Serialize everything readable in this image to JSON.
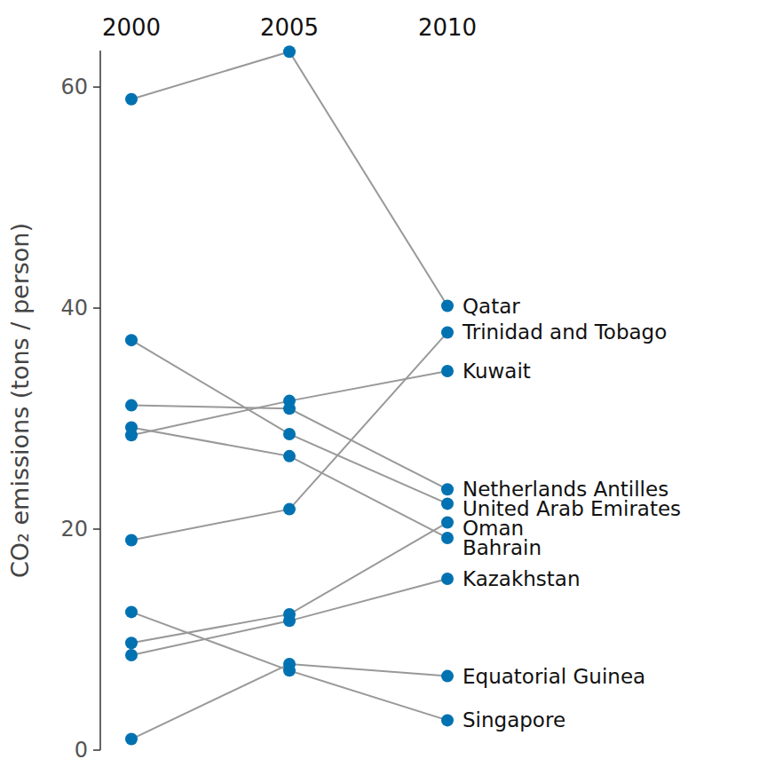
{
  "chart_data": {
    "type": "line",
    "marker": "circle",
    "color": "#0072b2",
    "y_label": "CO₂ emissions (tons / person)",
    "x": [
      2000,
      2005,
      2010
    ],
    "xlim": [
      2000,
      2010
    ],
    "ylim": [
      0,
      63.3
    ],
    "yticks": [
      0,
      20,
      40,
      60
    ],
    "series": [
      {
        "name": "Qatar",
        "values": [
          58.9,
          63.2,
          40.2
        ]
      },
      {
        "name": "Trinidad and Tobago",
        "values": [
          19.0,
          21.8,
          37.8
        ]
      },
      {
        "name": "Kuwait",
        "values": [
          28.5,
          31.6,
          34.3
        ]
      },
      {
        "name": "Netherlands Antilles",
        "values": [
          31.2,
          30.9,
          23.6
        ]
      },
      {
        "name": "United Arab Emirates",
        "values": [
          37.1,
          28.6,
          22.3
        ]
      },
      {
        "name": "Oman",
        "values": [
          9.7,
          12.3,
          20.6
        ]
      },
      {
        "name": "Bahrain",
        "values": [
          29.2,
          26.6,
          19.2
        ]
      },
      {
        "name": "Kazakhstan",
        "values": [
          8.6,
          11.7,
          15.5
        ]
      },
      {
        "name": "Equatorial Guinea",
        "values": [
          1.0,
          7.8,
          6.7
        ]
      },
      {
        "name": "Singapore",
        "values": [
          12.5,
          7.2,
          2.7
        ]
      }
    ]
  }
}
